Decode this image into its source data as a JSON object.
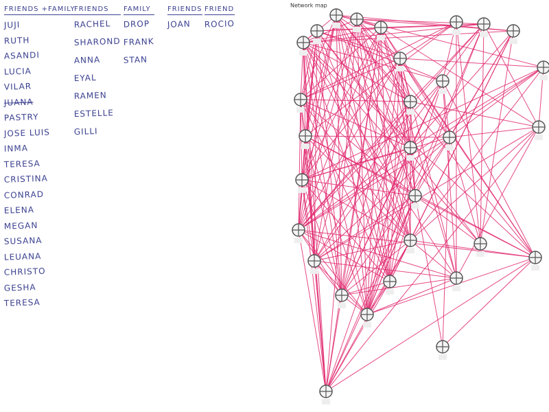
{
  "lists": [
    {
      "header": "FRIENDS +FAMILY",
      "items": [
        "Juji",
        "Ruth",
        "Asandi",
        "Lucia",
        "Vilar",
        "Juana",
        "Pastry",
        "Jose Luis",
        "Inma",
        "Teresa",
        "Cristina",
        "Conrad",
        "Elena",
        "Megan",
        "Susana",
        "Leuana",
        "Christo",
        "Gesha",
        "Teresa"
      ]
    },
    {
      "header": "FRIENDS",
      "items": [
        "Rachel",
        "Sharond",
        "Anna",
        "Eyal",
        "Ramen",
        "Estelle",
        "Gilli"
      ]
    },
    {
      "header": "FAMILY",
      "items": [
        "Drop",
        "Frank",
        "Stan"
      ]
    },
    {
      "header": "FRIENDS",
      "items": [
        "Joan"
      ]
    },
    {
      "header": "FRIEND",
      "items": [
        "Rocio"
      ]
    }
  ],
  "network": {
    "title": "Network map"
  }
}
